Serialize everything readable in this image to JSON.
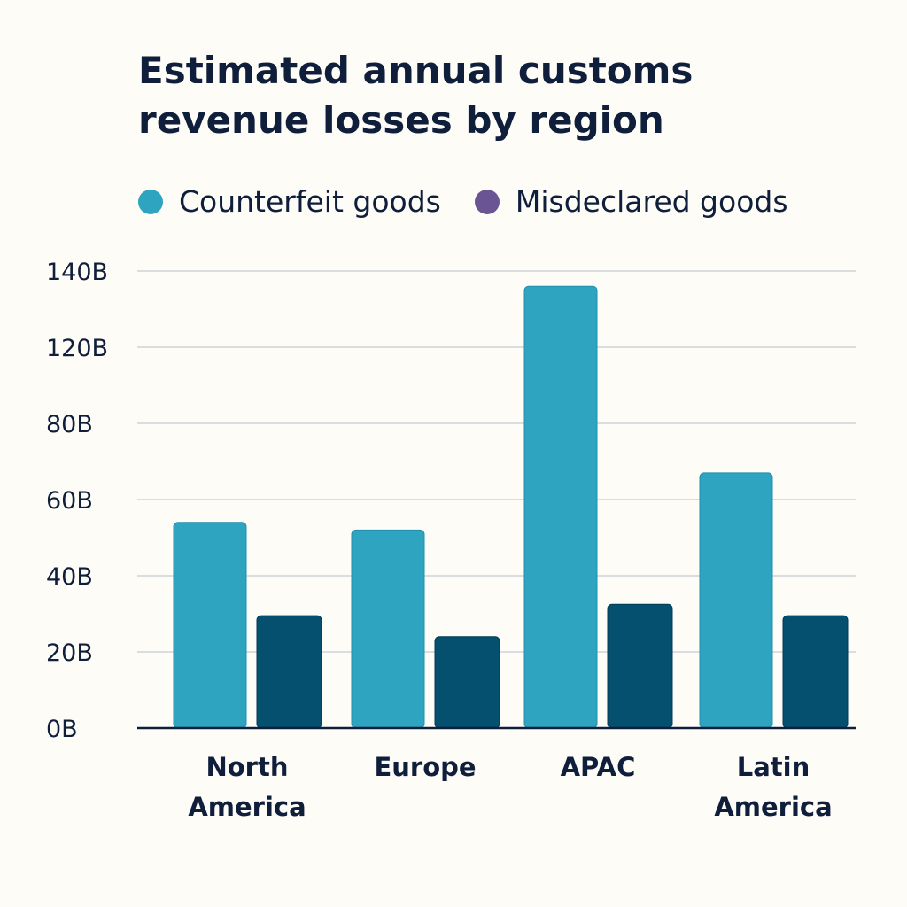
{
  "chart_data": {
    "type": "bar",
    "title": "Estimated annual customs revenue losses by region",
    "xlabel": "",
    "ylabel": "",
    "categories": [
      [
        "North",
        "America"
      ],
      [
        "Europe"
      ],
      [
        "APAC"
      ],
      [
        "Latin",
        "America"
      ]
    ],
    "series": [
      {
        "name": "Counterfeit goods",
        "values": [
          54,
          52,
          136,
          67
        ],
        "color": "#2fa4c0",
        "legend_color": "#2fa4c0"
      },
      {
        "name": "Misdeclared goods",
        "values": [
          29.5,
          24,
          32.5,
          29.5
        ],
        "color": "#04506e",
        "legend_color": "#6a5494"
      }
    ],
    "y_ticks": [
      0,
      20,
      40,
      60,
      80,
      120,
      140
    ],
    "y_tick_labels": [
      "0B",
      "20B",
      "40B",
      "60B",
      "80B",
      "120B",
      "140B"
    ],
    "ylim": [
      0,
      140
    ],
    "grid": true,
    "legend_position": "top-left"
  }
}
